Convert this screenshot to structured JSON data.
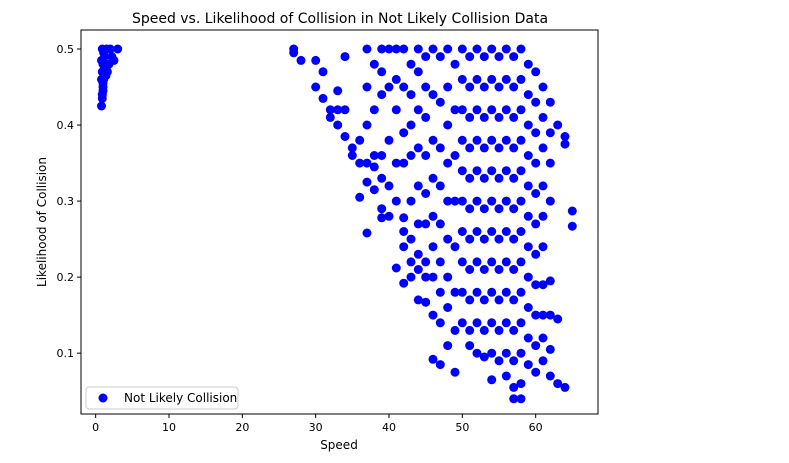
{
  "chart_data": {
    "type": "scatter",
    "title": "Speed vs. Likelihood of Collision in Not Likely Collision Data",
    "xlabel": "Speed",
    "ylabel": "Likelihood of Collision",
    "xlim": [
      -2,
      68.5
    ],
    "ylim": [
      0.02,
      0.525
    ],
    "xticks": [
      0,
      10,
      20,
      30,
      40,
      50,
      60
    ],
    "yticks": [
      0.1,
      0.2,
      0.3,
      0.4,
      0.5
    ],
    "xtick_labels": [
      "0",
      "10",
      "20",
      "30",
      "40",
      "50",
      "60"
    ],
    "ytick_labels": [
      "0.1",
      "0.2",
      "0.3",
      "0.4",
      "0.5"
    ],
    "grid": false,
    "legend_position": "lower-left",
    "series": [
      {
        "name": "Not Likely Collision",
        "color": "#0000ff",
        "points": [
          [
            0.8,
            0.425
          ],
          [
            0.9,
            0.44
          ],
          [
            1.0,
            0.45
          ],
          [
            1.1,
            0.46
          ],
          [
            0.9,
            0.47
          ],
          [
            1.0,
            0.48
          ],
          [
            1.2,
            0.49
          ],
          [
            0.9,
            0.5
          ],
          [
            1.5,
            0.5
          ],
          [
            1.3,
            0.48
          ],
          [
            0.8,
            0.46
          ],
          [
            1.4,
            0.465
          ],
          [
            1.0,
            0.455
          ],
          [
            1.2,
            0.475
          ],
          [
            0.8,
            0.485
          ],
          [
            1.1,
            0.495
          ],
          [
            2.0,
            0.5
          ],
          [
            2.2,
            0.49
          ],
          [
            3.0,
            0.5
          ],
          [
            1.8,
            0.48
          ],
          [
            2.5,
            0.485
          ],
          [
            1.6,
            0.47
          ],
          [
            0.9,
            0.435
          ],
          [
            1.0,
            0.445
          ],
          [
            27,
            0.5
          ],
          [
            27,
            0.495
          ],
          [
            28,
            0.485
          ],
          [
            30,
            0.485
          ],
          [
            30,
            0.45
          ],
          [
            31,
            0.47
          ],
          [
            31,
            0.435
          ],
          [
            32,
            0.42
          ],
          [
            32,
            0.41
          ],
          [
            33,
            0.445
          ],
          [
            33,
            0.42
          ],
          [
            33,
            0.4
          ],
          [
            34,
            0.49
          ],
          [
            34,
            0.42
          ],
          [
            34,
            0.385
          ],
          [
            35,
            0.37
          ],
          [
            35,
            0.36
          ],
          [
            36,
            0.38
          ],
          [
            36,
            0.35
          ],
          [
            36,
            0.305
          ],
          [
            37,
            0.5
          ],
          [
            37,
            0.45
          ],
          [
            37,
            0.4
          ],
          [
            37,
            0.35
          ],
          [
            37,
            0.325
          ],
          [
            37,
            0.258
          ],
          [
            38,
            0.48
          ],
          [
            38,
            0.42
          ],
          [
            38,
            0.36
          ],
          [
            38,
            0.345
          ],
          [
            38,
            0.315
          ],
          [
            39,
            0.5
          ],
          [
            39,
            0.47
          ],
          [
            39,
            0.44
          ],
          [
            39,
            0.36
          ],
          [
            39,
            0.33
          ],
          [
            39,
            0.29
          ],
          [
            39,
            0.278
          ],
          [
            40,
            0.5
          ],
          [
            40,
            0.45
          ],
          [
            40,
            0.38
          ],
          [
            40,
            0.32
          ],
          [
            40,
            0.28
          ],
          [
            41,
            0.5
          ],
          [
            41,
            0.46
          ],
          [
            41,
            0.42
          ],
          [
            41,
            0.35
          ],
          [
            41,
            0.3
          ],
          [
            41,
            0.212
          ],
          [
            42,
            0.5
          ],
          [
            42,
            0.45
          ],
          [
            42,
            0.39
          ],
          [
            42,
            0.35
          ],
          [
            42,
            0.278
          ],
          [
            42,
            0.26
          ],
          [
            42,
            0.24
          ],
          [
            42,
            0.192
          ],
          [
            43,
            0.48
          ],
          [
            43,
            0.44
          ],
          [
            43,
            0.4
          ],
          [
            43,
            0.36
          ],
          [
            43,
            0.3
          ],
          [
            43,
            0.25
          ],
          [
            43,
            0.22
          ],
          [
            43,
            0.2
          ],
          [
            44,
            0.5
          ],
          [
            44,
            0.47
          ],
          [
            44,
            0.42
          ],
          [
            44,
            0.37
          ],
          [
            44,
            0.32
          ],
          [
            44,
            0.27
          ],
          [
            44,
            0.23
          ],
          [
            44,
            0.21
          ],
          [
            44,
            0.17
          ],
          [
            45,
            0.49
          ],
          [
            45,
            0.45
          ],
          [
            45,
            0.41
          ],
          [
            45,
            0.36
          ],
          [
            45,
            0.31
          ],
          [
            45,
            0.27
          ],
          [
            45,
            0.22
          ],
          [
            45,
            0.2
          ],
          [
            45,
            0.167
          ],
          [
            46,
            0.5
          ],
          [
            46,
            0.44
          ],
          [
            46,
            0.38
          ],
          [
            46,
            0.33
          ],
          [
            46,
            0.28
          ],
          [
            46,
            0.24
          ],
          [
            46,
            0.2
          ],
          [
            46,
            0.15
          ],
          [
            46,
            0.092
          ],
          [
            47,
            0.49
          ],
          [
            47,
            0.43
          ],
          [
            47,
            0.37
          ],
          [
            47,
            0.32
          ],
          [
            47,
            0.27
          ],
          [
            47,
            0.22
          ],
          [
            47,
            0.18
          ],
          [
            47,
            0.14
          ],
          [
            47,
            0.085
          ],
          [
            48,
            0.5
          ],
          [
            48,
            0.45
          ],
          [
            48,
            0.4
          ],
          [
            48,
            0.35
          ],
          [
            48,
            0.3
          ],
          [
            48,
            0.25
          ],
          [
            48,
            0.2
          ],
          [
            48,
            0.16
          ],
          [
            48,
            0.11
          ],
          [
            49,
            0.48
          ],
          [
            49,
            0.42
          ],
          [
            49,
            0.36
          ],
          [
            49,
            0.3
          ],
          [
            49,
            0.24
          ],
          [
            49,
            0.18
          ],
          [
            49,
            0.13
          ],
          [
            49,
            0.075
          ],
          [
            50,
            0.5
          ],
          [
            50,
            0.46
          ],
          [
            50,
            0.42
          ],
          [
            50,
            0.38
          ],
          [
            50,
            0.34
          ],
          [
            50,
            0.3
          ],
          [
            50,
            0.26
          ],
          [
            50,
            0.22
          ],
          [
            50,
            0.18
          ],
          [
            50,
            0.14
          ],
          [
            51,
            0.49
          ],
          [
            51,
            0.45
          ],
          [
            51,
            0.41
          ],
          [
            51,
            0.37
          ],
          [
            51,
            0.33
          ],
          [
            51,
            0.29
          ],
          [
            51,
            0.25
          ],
          [
            51,
            0.21
          ],
          [
            51,
            0.17
          ],
          [
            51,
            0.13
          ],
          [
            51,
            0.11
          ],
          [
            52,
            0.5
          ],
          [
            52,
            0.46
          ],
          [
            52,
            0.42
          ],
          [
            52,
            0.38
          ],
          [
            52,
            0.34
          ],
          [
            52,
            0.3
          ],
          [
            52,
            0.26
          ],
          [
            52,
            0.22
          ],
          [
            52,
            0.18
          ],
          [
            52,
            0.14
          ],
          [
            52,
            0.1
          ],
          [
            53,
            0.49
          ],
          [
            53,
            0.45
          ],
          [
            53,
            0.41
          ],
          [
            53,
            0.37
          ],
          [
            53,
            0.33
          ],
          [
            53,
            0.29
          ],
          [
            53,
            0.25
          ],
          [
            53,
            0.21
          ],
          [
            53,
            0.17
          ],
          [
            53,
            0.13
          ],
          [
            53,
            0.095
          ],
          [
            54,
            0.5
          ],
          [
            54,
            0.46
          ],
          [
            54,
            0.42
          ],
          [
            54,
            0.38
          ],
          [
            54,
            0.34
          ],
          [
            54,
            0.3
          ],
          [
            54,
            0.26
          ],
          [
            54,
            0.22
          ],
          [
            54,
            0.18
          ],
          [
            54,
            0.14
          ],
          [
            54,
            0.1
          ],
          [
            54,
            0.065
          ],
          [
            55,
            0.49
          ],
          [
            55,
            0.45
          ],
          [
            55,
            0.41
          ],
          [
            55,
            0.37
          ],
          [
            55,
            0.33
          ],
          [
            55,
            0.29
          ],
          [
            55,
            0.25
          ],
          [
            55,
            0.21
          ],
          [
            55,
            0.17
          ],
          [
            55,
            0.13
          ],
          [
            55,
            0.09
          ],
          [
            56,
            0.5
          ],
          [
            56,
            0.46
          ],
          [
            56,
            0.42
          ],
          [
            56,
            0.38
          ],
          [
            56,
            0.34
          ],
          [
            56,
            0.3
          ],
          [
            56,
            0.26
          ],
          [
            56,
            0.22
          ],
          [
            56,
            0.18
          ],
          [
            56,
            0.14
          ],
          [
            56,
            0.1
          ],
          [
            56,
            0.07
          ],
          [
            57,
            0.49
          ],
          [
            57,
            0.45
          ],
          [
            57,
            0.41
          ],
          [
            57,
            0.37
          ],
          [
            57,
            0.33
          ],
          [
            57,
            0.29
          ],
          [
            57,
            0.25
          ],
          [
            57,
            0.21
          ],
          [
            57,
            0.17
          ],
          [
            57,
            0.13
          ],
          [
            57,
            0.09
          ],
          [
            57,
            0.055
          ],
          [
            57,
            0.04
          ],
          [
            58,
            0.5
          ],
          [
            58,
            0.46
          ],
          [
            58,
            0.42
          ],
          [
            58,
            0.38
          ],
          [
            58,
            0.34
          ],
          [
            58,
            0.3
          ],
          [
            58,
            0.26
          ],
          [
            58,
            0.22
          ],
          [
            58,
            0.18
          ],
          [
            58,
            0.14
          ],
          [
            58,
            0.1
          ],
          [
            58,
            0.06
          ],
          [
            58,
            0.04
          ],
          [
            59,
            0.48
          ],
          [
            59,
            0.44
          ],
          [
            59,
            0.4
          ],
          [
            59,
            0.36
          ],
          [
            59,
            0.32
          ],
          [
            59,
            0.28
          ],
          [
            59,
            0.24
          ],
          [
            59,
            0.2
          ],
          [
            59,
            0.16
          ],
          [
            59,
            0.12
          ],
          [
            59,
            0.085
          ],
          [
            60,
            0.47
          ],
          [
            60,
            0.43
          ],
          [
            60,
            0.39
          ],
          [
            60,
            0.35
          ],
          [
            60,
            0.31
          ],
          [
            60,
            0.27
          ],
          [
            60,
            0.23
          ],
          [
            60,
            0.19
          ],
          [
            60,
            0.15
          ],
          [
            60,
            0.11
          ],
          [
            60,
            0.075
          ],
          [
            61,
            0.45
          ],
          [
            61,
            0.41
          ],
          [
            61,
            0.37
          ],
          [
            61,
            0.32
          ],
          [
            61,
            0.28
          ],
          [
            61,
            0.24
          ],
          [
            61,
            0.19
          ],
          [
            61,
            0.15
          ],
          [
            61,
            0.12
          ],
          [
            61,
            0.09
          ],
          [
            62,
            0.43
          ],
          [
            62,
            0.39
          ],
          [
            62,
            0.35
          ],
          [
            62,
            0.3
          ],
          [
            62,
            0.195
          ],
          [
            62,
            0.15
          ],
          [
            62,
            0.105
          ],
          [
            62,
            0.07
          ],
          [
            63,
            0.4
          ],
          [
            63,
            0.145
          ],
          [
            63,
            0.06
          ],
          [
            64,
            0.385
          ],
          [
            64,
            0.375
          ],
          [
            64,
            0.055
          ],
          [
            65,
            0.287
          ],
          [
            65,
            0.267
          ]
        ]
      }
    ]
  }
}
